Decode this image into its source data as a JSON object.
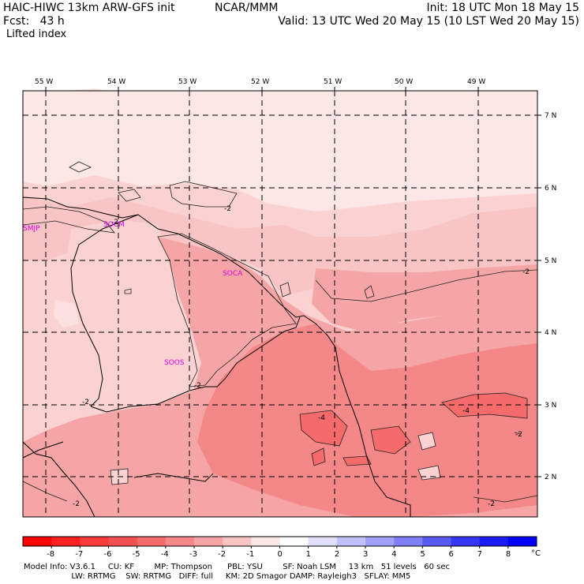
{
  "header": {
    "model": "HAIC-HIWC 13km ARW-GFS init",
    "org": "NCAR/MMM",
    "init": "Init: 18 UTC Mon 18 May 15",
    "fcst": "Fcst:   43 h",
    "valid": "Valid: 13 UTC Wed 20 May 15 (10 LST Wed 20 May 15)",
    "field": "Lifted index"
  },
  "map": {
    "lon_labels": [
      "55 W",
      "54 W",
      "53 W",
      "52 W",
      "51 W",
      "50 W",
      "49 W"
    ],
    "lat_labels": [
      "7 N",
      "6 N",
      "5 N",
      "4 N",
      "3 N",
      "2 N"
    ],
    "stations": [
      "SMJP",
      "SOCM",
      "SOCA",
      "SOOS"
    ],
    "contour_labels": [
      "-2",
      "-2",
      "-2",
      "-2",
      "-2",
      "-2",
      "-2",
      "-2",
      "-4",
      "-4"
    ]
  },
  "colorbar": {
    "labels": [
      "-8",
      "-7",
      "-6",
      "-5",
      "-4",
      "-3",
      "-2",
      "-1",
      "0",
      "1",
      "2",
      "3",
      "4",
      "5",
      "6",
      "7",
      "8"
    ],
    "unit": "°C",
    "colors": [
      "#ff0000",
      "#ff2020",
      "#ff3a3a",
      "#f55050",
      "#f56a6a",
      "#f48787",
      "#f5a5a5",
      "#f9c4c4",
      "#fde6e6",
      "#ffffff",
      "#e0e0fc",
      "#c0c0fa",
      "#a0a0f7",
      "#7f7ff5",
      "#5a5af5",
      "#3636f8",
      "#1c1cfb",
      "#0000ff"
    ]
  },
  "footer": {
    "line1": "Model Info: V3.6.1     CU: KF        MP: Thompson      PBL: YSU        SF: Noah LSM     13 km   51 levels   60 sec",
    "line2": "                   LW: RRTMG    SW: RRTMG   DIFF: full     KM: 2D Smagor DAMP: Rayleigh3   SFLAY: MM5"
  }
}
